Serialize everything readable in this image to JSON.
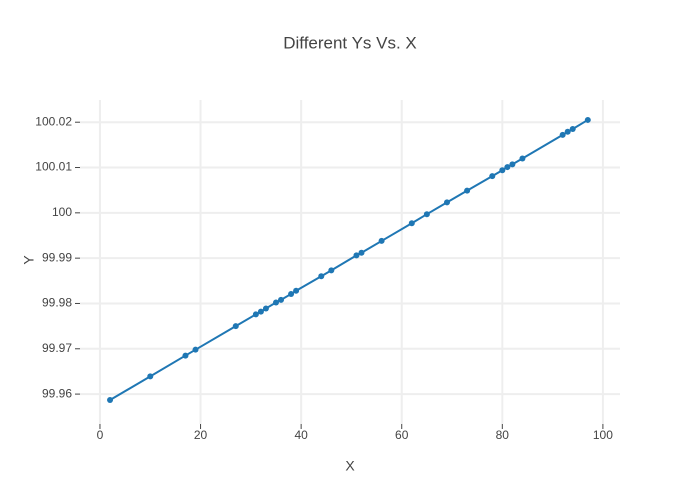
{
  "chart_data": {
    "type": "line",
    "title": "Different Ys Vs. X",
    "x_label": "X",
    "y_label": "Y",
    "x": [
      2,
      10,
      17,
      19,
      27,
      31,
      32,
      33,
      35,
      36,
      38,
      39,
      44,
      46,
      51,
      52,
      56,
      62,
      65,
      69,
      73,
      78,
      80,
      81,
      82,
      84,
      92,
      93,
      94,
      97
    ],
    "series": [
      {
        "color": "#1f77b4",
        "markers": true,
        "values": [
          99.9587,
          99.9639,
          99.9685,
          99.9698,
          99.975,
          99.9776,
          99.9782,
          99.9789,
          99.9802,
          99.9808,
          99.9821,
          99.9828,
          99.986,
          99.9873,
          99.9906,
          99.9912,
          99.9938,
          99.9977,
          99.9997,
          100.0023,
          100.0049,
          100.0081,
          100.0094,
          100.0101,
          100.0107,
          100.012,
          100.0172,
          100.0179,
          100.0185,
          100.0205
        ]
      }
    ],
    "xlim": [
      -3.97,
      103.4
    ],
    "xticks": [
      0,
      20,
      40,
      60,
      80,
      100
    ],
    "ylim": [
      99.9534,
      100.0249
    ],
    "yticks": [
      99.96,
      99.97,
      99.98,
      99.99,
      100,
      100.01,
      100.02
    ],
    "grid": true
  }
}
